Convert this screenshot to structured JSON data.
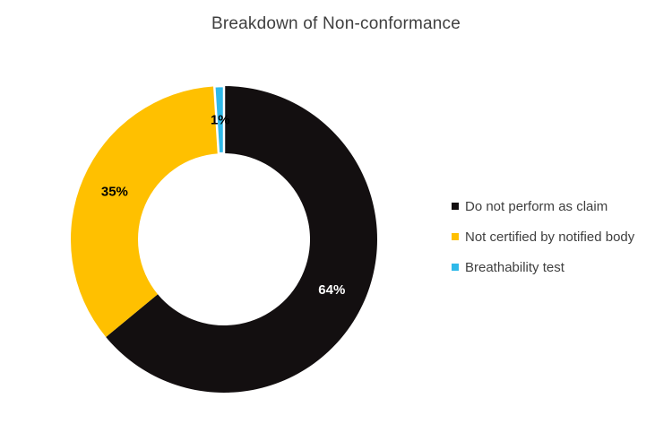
{
  "chart_data": {
    "type": "pie",
    "subtype": "donut",
    "title": "Breakdown of Non-conformance",
    "categories": [
      "Do not perform as claim",
      "Not certified by notified body",
      "Breathability test"
    ],
    "values": [
      64,
      35,
      1
    ],
    "slices": [
      {
        "label": "Do not perform as claim",
        "value": 64,
        "data_label": "64%",
        "color": "#130F10",
        "data_label_color": "#FFFFFF",
        "border_width": 0
      },
      {
        "label": "Not certified by notified body",
        "value": 35,
        "data_label": "35%",
        "color": "#FFC000",
        "data_label_color": "#000000",
        "border_width": 0
      },
      {
        "label": "Breathability test",
        "value": 1,
        "data_label": "1%",
        "color": "#2FB9E9",
        "data_label_color": "#000000",
        "border_width": 2.5
      }
    ],
    "start_angle_deg": 0,
    "direction": "clockwise",
    "donut_hole_ratio": 0.56,
    "slice_border_color": "#FFFFFF",
    "legend_position": "right",
    "background_color": "#FFFFFF",
    "title_color": "#3F3F3F",
    "legend_text_color": "#3F3F3F"
  }
}
